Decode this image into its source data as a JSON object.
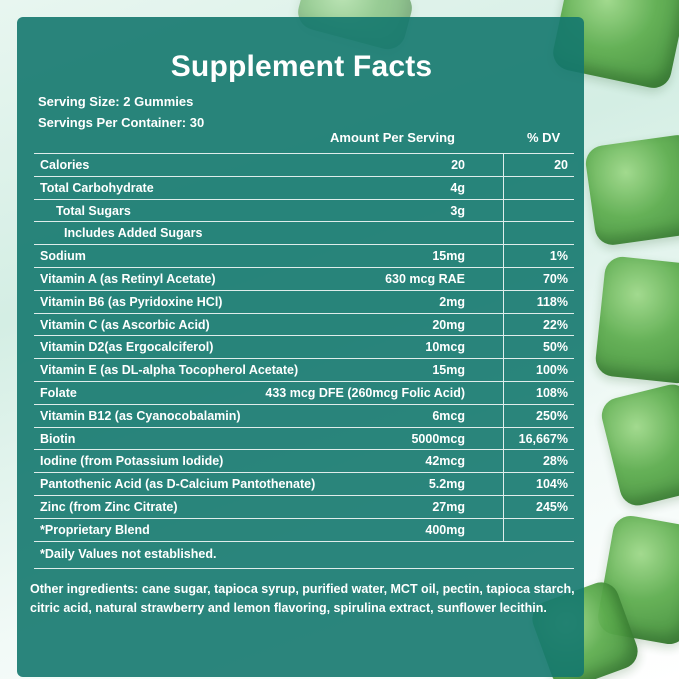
{
  "panel": {
    "title": "Supplement Facts",
    "serving_size": "Serving Size: 2 Gummies",
    "servings_per_container": "Servings Per Container: 30",
    "col_amount": "Amount Per Serving",
    "col_dv": "% DV"
  },
  "rows": [
    {
      "name": "Calories",
      "amount": "20",
      "dv": "20"
    },
    {
      "name": "Total Carbohydrate",
      "amount": "4g",
      "dv": ""
    },
    {
      "name": "Total Sugars",
      "amount": "3g",
      "dv": ""
    },
    {
      "name": "Includes Added Sugars",
      "amount": "",
      "dv": ""
    },
    {
      "name": "Sodium",
      "amount": "15mg",
      "dv": "1%"
    },
    {
      "name": "Vitamin A (as Retinyl Acetate)",
      "amount": "630 mcg RAE",
      "dv": "70%"
    },
    {
      "name": "Vitamin B6 (as Pyridoxine HCl)",
      "amount": "2mg",
      "dv": "118%"
    },
    {
      "name": "Vitamin C (as Ascorbic Acid)",
      "amount": "20mg",
      "dv": "22%"
    },
    {
      "name": "Vitamin D2(as Ergocalciferol)",
      "amount": "10mcg",
      "dv": "50%"
    },
    {
      "name": "Vitamin E (as DL-alpha Tocopherol Acetate)",
      "amount": "15mg",
      "dv": "100%"
    },
    {
      "name": "Folate",
      "amount": "433 mcg DFE (260mcg Folic Acid)",
      "dv": "108%"
    },
    {
      "name": "Vitamin B12 (as Cyanocobalamin)",
      "amount": "6mcg",
      "dv": "250%"
    },
    {
      "name": "Biotin",
      "amount": "5000mcg",
      "dv": "16,667%"
    },
    {
      "name": "Iodine (from Potassium Iodide)",
      "amount": "42mcg",
      "dv": "28%"
    },
    {
      "name": "Pantothenic Acid (as D-Calcium Pantothenate)",
      "amount": "5.2mg",
      "dv": "104%"
    },
    {
      "name": "Zinc (from Zinc Citrate)",
      "amount": "27mg",
      "dv": "245%"
    },
    {
      "name": "*Proprietary Blend",
      "amount": "400mg",
      "dv": ""
    }
  ],
  "footnote": "*Daily Values not established.",
  "other_ingredients": {
    "label": "Other ingredients:",
    "text": " cane sugar, tapioca syrup, purified water, MCT oil, pectin, tapioca starch, citric acid, natural strawberry and lemon flavoring, spirulina extract, sunflower lecithin."
  }
}
